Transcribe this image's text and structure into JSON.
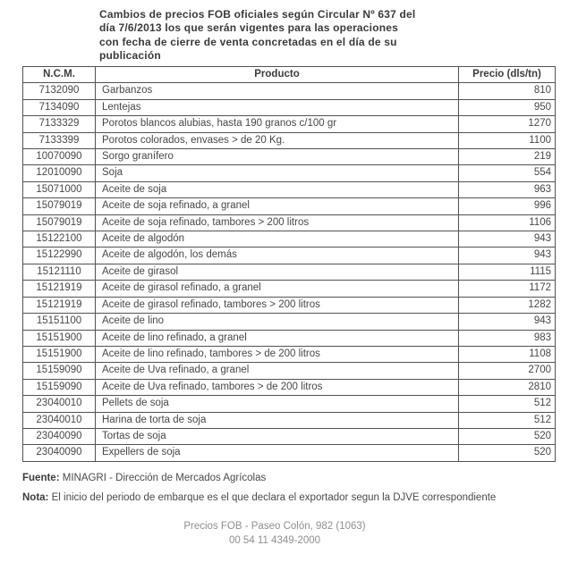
{
  "title_lines": [
    "Cambios de precios FOB oficiales según Circular Nº 637 del",
    "día 7/6/2013 los que serán vigentes para las operaciones",
    "con fecha de cierre de venta concretadas en el día de su",
    "publicación"
  ],
  "table": {
    "headers": {
      "ncm": "N.C.M.",
      "producto": "Producto",
      "precio": "Precio (dls/tn)"
    },
    "rows": [
      {
        "ncm": "7132090",
        "producto": "Garbanzos",
        "precio": "810"
      },
      {
        "ncm": "7134090",
        "producto": "Lentejas",
        "precio": "950"
      },
      {
        "ncm": "7133329",
        "producto": "Porotos blancos alubias, hasta 190 granos c/100 gr",
        "precio": "1270"
      },
      {
        "ncm": "7133399",
        "producto": "Porotos colorados, envases > de 20 Kg.",
        "precio": "1100"
      },
      {
        "ncm": "10070090",
        "producto": "Sorgo granífero",
        "precio": "219"
      },
      {
        "ncm": "12010090",
        "producto": "Soja",
        "precio": "554"
      },
      {
        "ncm": "15071000",
        "producto": "Aceite de soja",
        "precio": "963"
      },
      {
        "ncm": "15079019",
        "producto": "Aceite de soja refinado, a granel",
        "precio": "996"
      },
      {
        "ncm": "15079019",
        "producto": "Aceite de soja refinado, tambores > 200 litros",
        "precio": "1106"
      },
      {
        "ncm": "15122100",
        "producto": "Aceite de algodón",
        "precio": "943"
      },
      {
        "ncm": "15122990",
        "producto": "Aceite de algodón, los demás",
        "precio": "943"
      },
      {
        "ncm": "15121110",
        "producto": "Aceite de girasol",
        "precio": "1115"
      },
      {
        "ncm": "15121919",
        "producto": "Aceite de girasol refinado, a granel",
        "precio": "1172"
      },
      {
        "ncm": "15121919",
        "producto": "Aceite de girasol refinado, tambores > 200 litros",
        "precio": "1282"
      },
      {
        "ncm": "15151100",
        "producto": "Aceite de lino",
        "precio": "943"
      },
      {
        "ncm": "15151900",
        "producto": "Aceite de lino refinado, a granel",
        "precio": "983"
      },
      {
        "ncm": "15151900",
        "producto": "Aceite de lino refinado, tambores > de 200 litros",
        "precio": "1108"
      },
      {
        "ncm": "15159090",
        "producto": "Aceite de Uva refinado, a granel",
        "precio": "2700"
      },
      {
        "ncm": "15159090",
        "producto": "Aceite de Uva refinado, tambores > de 200 litros",
        "precio": "2810"
      },
      {
        "ncm": "23040010",
        "producto": "Pellets de soja",
        "precio": "512"
      },
      {
        "ncm": "23040010",
        "producto": "Harina de torta de soja",
        "precio": "512"
      },
      {
        "ncm": "23040090",
        "producto": "Tortas de soja",
        "precio": "520"
      },
      {
        "ncm": "23040090",
        "producto": "Expellers de soja",
        "precio": "520"
      }
    ]
  },
  "footer": {
    "fuente_label": "Fuente:",
    "fuente_text": "MINAGRI - Dirección de Mercados Agrícolas",
    "nota_label": "Nota:",
    "nota_text": "El inicio del periodo de embarque es el que declara el exportador segun la DJVE correspondiente",
    "contact_line1": "Precios FOB - Paseo Colón, 982 (1063)",
    "contact_line2": "00 54 11 4349-2000"
  },
  "colors": {
    "text": "#3f3f3f",
    "border": "#525252",
    "contact_text": "#8f8f8f",
    "background": "#ffffff"
  }
}
